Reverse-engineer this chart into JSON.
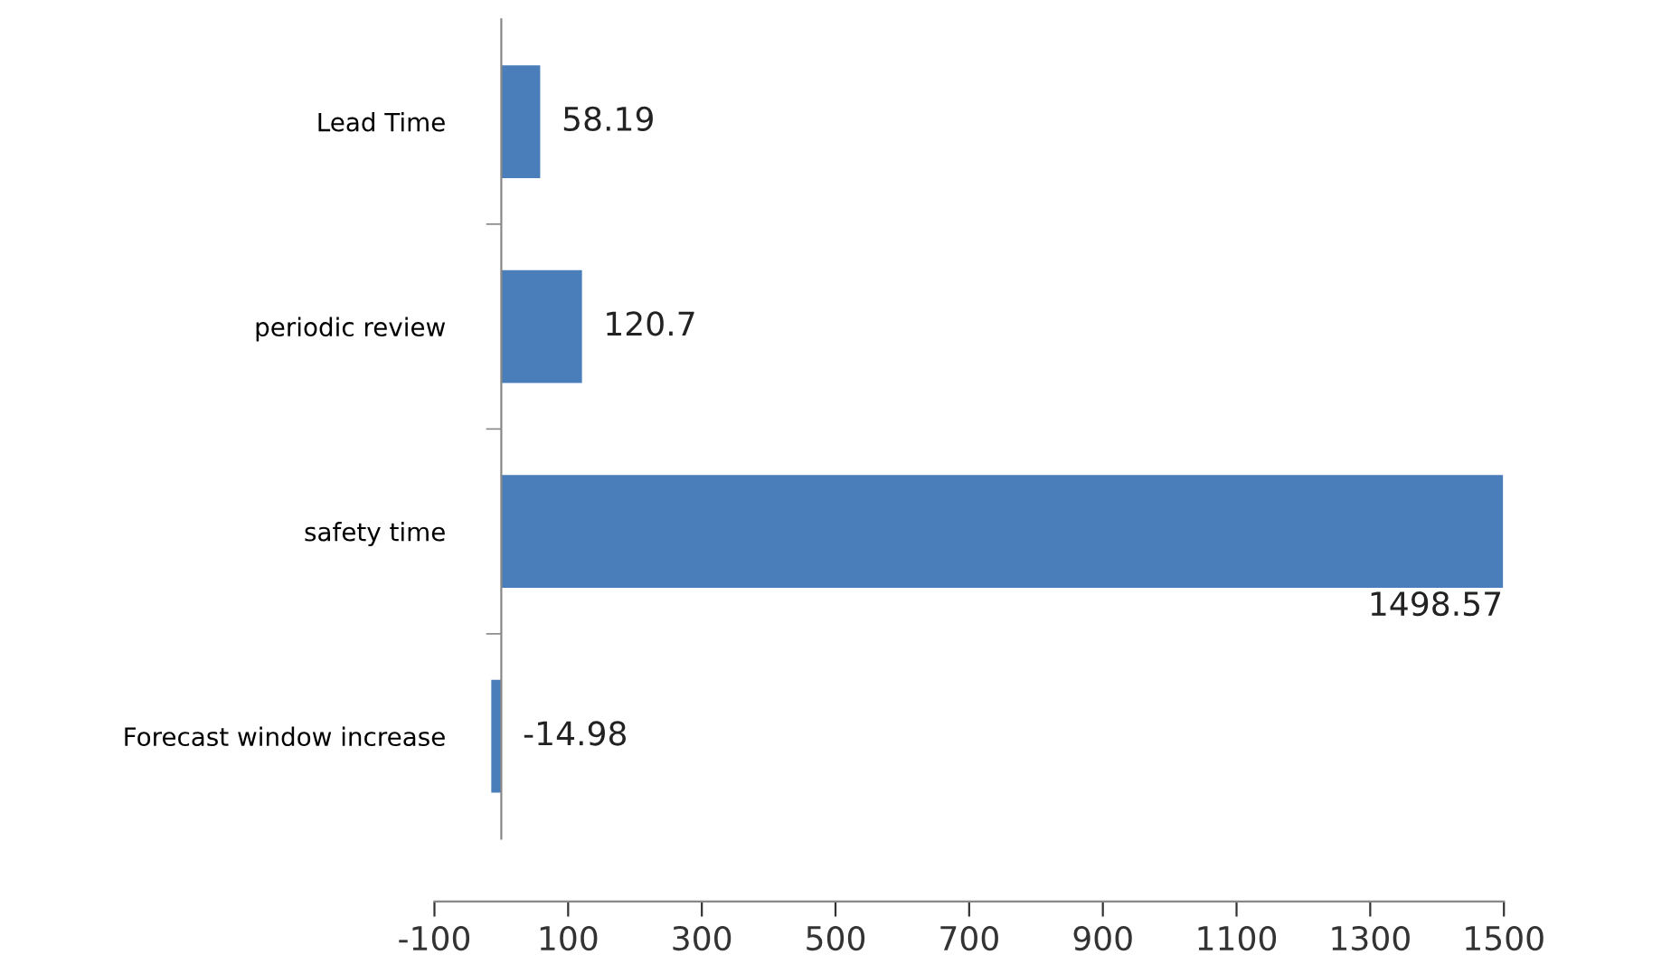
{
  "chart_data": {
    "type": "bar",
    "orientation": "horizontal",
    "categories": [
      "Lead Time",
      "periodic review",
      "safety time",
      "Forecast window increase"
    ],
    "values": [
      58.19,
      120.7,
      1498.57,
      -14.98
    ],
    "color": "#4a7ebb",
    "xlim": [
      -100,
      1500
    ],
    "xticks": [
      -100,
      100,
      300,
      500,
      700,
      900,
      1100,
      1300,
      1500
    ],
    "data_labels": true,
    "grid": false,
    "legend": false
  }
}
